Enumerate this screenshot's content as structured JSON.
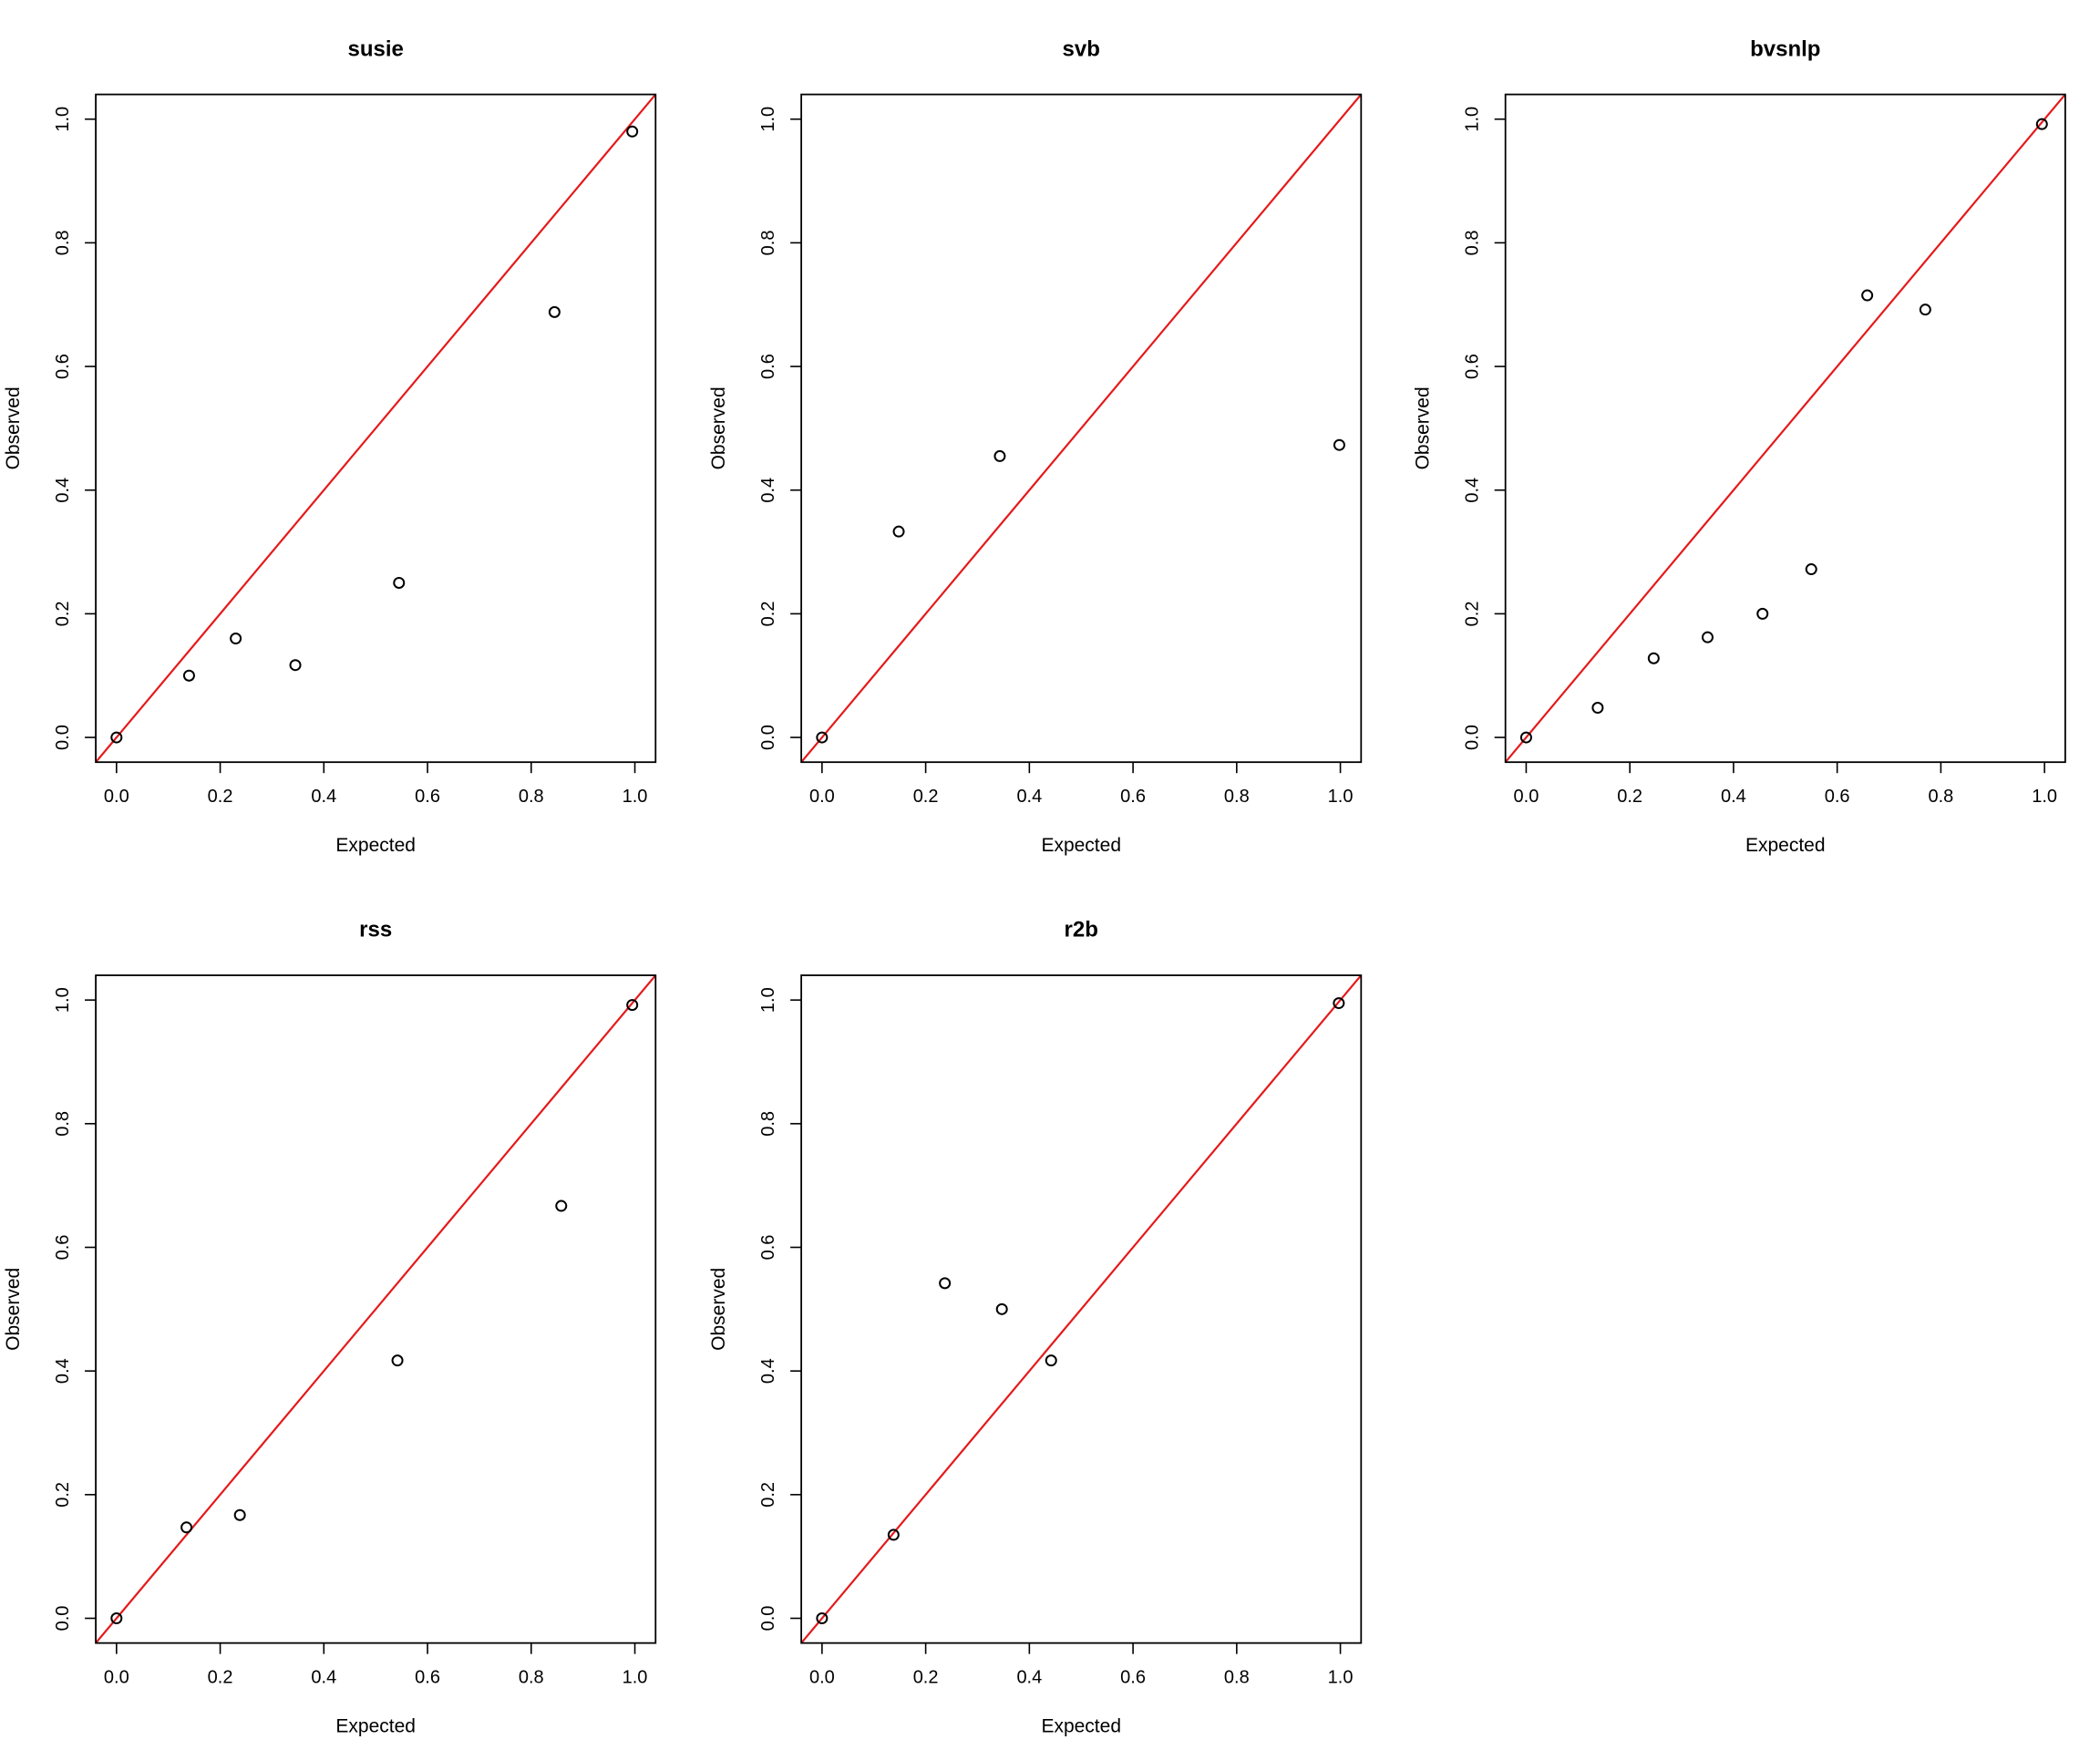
{
  "chart_data": [
    {
      "type": "scatter",
      "title": "susie",
      "xlabel": "Expected",
      "ylabel": "Observed",
      "xlim": [
        -0.04,
        1.04
      ],
      "ylim": [
        -0.04,
        1.04
      ],
      "xticks": [
        "0.0",
        "0.2",
        "0.4",
        "0.6",
        "0.8",
        "1.0"
      ],
      "yticks": [
        "0.0",
        "0.2",
        "0.4",
        "0.6",
        "0.8",
        "1.0"
      ],
      "grid": false,
      "reference_line": {
        "type": "y=x",
        "color": "#e41a1c"
      },
      "series": [
        {
          "x": [
            0.0,
            0.14,
            0.23,
            0.345,
            0.545,
            0.845,
            0.995
          ],
          "y": [
            0.0,
            0.1,
            0.16,
            0.117,
            0.25,
            0.688,
            0.98
          ]
        }
      ]
    },
    {
      "type": "scatter",
      "title": "svb",
      "xlabel": "Expected",
      "ylabel": "Observed",
      "xlim": [
        -0.04,
        1.04
      ],
      "ylim": [
        -0.04,
        1.04
      ],
      "xticks": [
        "0.0",
        "0.2",
        "0.4",
        "0.6",
        "0.8",
        "1.0"
      ],
      "yticks": [
        "0.0",
        "0.2",
        "0.4",
        "0.6",
        "0.8",
        "1.0"
      ],
      "grid": false,
      "reference_line": {
        "type": "y=x",
        "color": "#e41a1c"
      },
      "series": [
        {
          "x": [
            0.0,
            0.148,
            0.343,
            0.998
          ],
          "y": [
            0.0,
            0.333,
            0.455,
            0.473
          ]
        }
      ]
    },
    {
      "type": "scatter",
      "title": "bvsnlp",
      "xlabel": "Expected",
      "ylabel": "Observed",
      "xlim": [
        -0.04,
        1.04
      ],
      "ylim": [
        -0.04,
        1.04
      ],
      "xticks": [
        "0.0",
        "0.2",
        "0.4",
        "0.6",
        "0.8",
        "1.0"
      ],
      "yticks": [
        "0.0",
        "0.2",
        "0.4",
        "0.6",
        "0.8",
        "1.0"
      ],
      "grid": false,
      "reference_line": {
        "type": "y=x",
        "color": "#e41a1c"
      },
      "series": [
        {
          "x": [
            0.0,
            0.138,
            0.246,
            0.35,
            0.456,
            0.55,
            0.658,
            0.77,
            0.995
          ],
          "y": [
            0.0,
            0.048,
            0.128,
            0.162,
            0.2,
            0.272,
            0.715,
            0.692,
            0.992
          ]
        }
      ]
    },
    {
      "type": "scatter",
      "title": "rss",
      "xlabel": "Expected",
      "ylabel": "Observed",
      "xlim": [
        -0.04,
        1.04
      ],
      "ylim": [
        -0.04,
        1.04
      ],
      "xticks": [
        "0.0",
        "0.2",
        "0.4",
        "0.6",
        "0.8",
        "1.0"
      ],
      "yticks": [
        "0.0",
        "0.2",
        "0.4",
        "0.6",
        "0.8",
        "1.0"
      ],
      "grid": false,
      "reference_line": {
        "type": "y=x",
        "color": "#e41a1c"
      },
      "series": [
        {
          "x": [
            0.0,
            0.135,
            0.238,
            0.542,
            0.858,
            0.995
          ],
          "y": [
            0.0,
            0.147,
            0.167,
            0.417,
            0.667,
            0.992
          ]
        }
      ]
    },
    {
      "type": "scatter",
      "title": "r2b",
      "xlabel": "Expected",
      "ylabel": "Observed",
      "xlim": [
        -0.04,
        1.04
      ],
      "ylim": [
        -0.04,
        1.04
      ],
      "xticks": [
        "0.0",
        "0.2",
        "0.4",
        "0.6",
        "0.8",
        "1.0"
      ],
      "yticks": [
        "0.0",
        "0.2",
        "0.4",
        "0.6",
        "0.8",
        "1.0"
      ],
      "grid": false,
      "reference_line": {
        "type": "y=x",
        "color": "#e41a1c"
      },
      "series": [
        {
          "x": [
            0.0,
            0.138,
            0.237,
            0.347,
            0.442,
            0.997
          ],
          "y": [
            0.0,
            0.135,
            0.542,
            0.5,
            0.417,
            0.995
          ]
        }
      ]
    }
  ],
  "colors": {
    "reference_line": "#e41a1c",
    "points": "#000000",
    "axes": "#000000"
  }
}
